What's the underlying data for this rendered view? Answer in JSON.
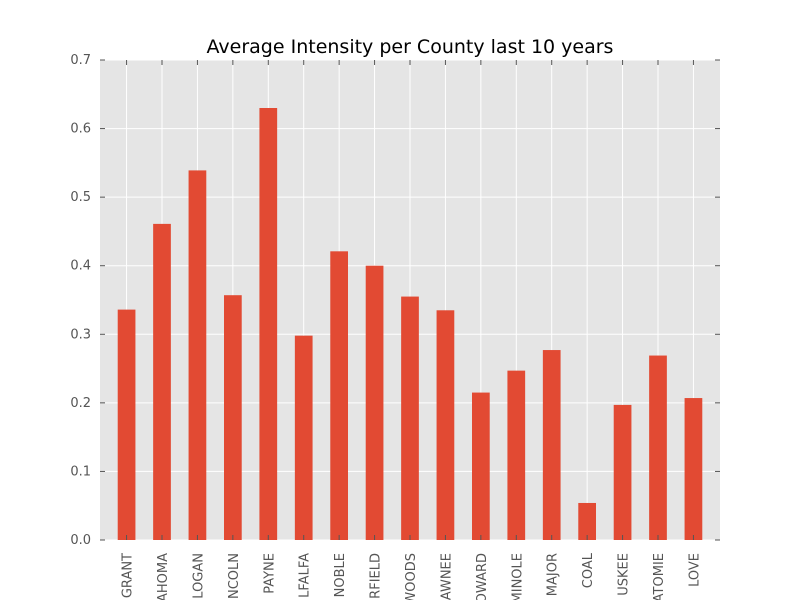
{
  "chart_data": {
    "type": "bar",
    "title": "Average Intensity per County last 10 years",
    "xlabel": "",
    "ylabel": "",
    "categories": [
      "GRANT",
      "AHOMA",
      "LOGAN",
      "NCOLN",
      "PAYNE",
      "LFALFA",
      "NOBLE",
      "RFIELD",
      "WOODS",
      "AWNEE",
      "OWARD",
      "MINOLE",
      "MAJOR",
      "COAL",
      "USKEE",
      "ATOMIE",
      "LOVE"
    ],
    "values": [
      0.336,
      0.461,
      0.539,
      0.357,
      0.63,
      0.298,
      0.421,
      0.4,
      0.355,
      0.335,
      0.215,
      0.247,
      0.277,
      0.054,
      0.197,
      0.269,
      0.207
    ],
    "ylim": [
      0,
      0.7
    ],
    "yticks": [
      "0.0",
      "0.1",
      "0.2",
      "0.3",
      "0.4",
      "0.5",
      "0.6",
      "0.7"
    ],
    "grid": true,
    "colors": {
      "bar": "#e24a33",
      "plot_background": "#e5e5e5",
      "grid": "#ffffff",
      "tick_text": "#555555"
    }
  }
}
